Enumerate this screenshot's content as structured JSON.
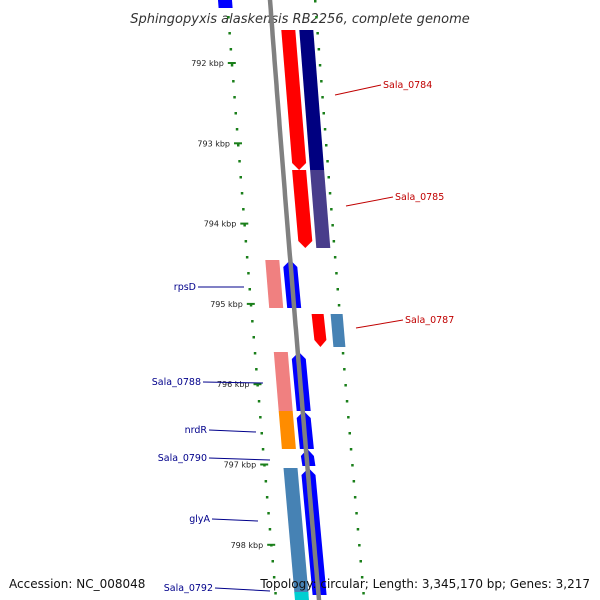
{
  "title": "Sphingopyxis alaskensis RB2256, complete genome",
  "footer": {
    "accession": "Accession: NC_008048",
    "topology": "Topology: circular; Length: 3,345,170 bp; Genes: 3,217"
  },
  "colors": {
    "backbone": "#808080",
    "tick": "#1a7f1a",
    "label_forward": "#c00000",
    "label_reverse": "#00008b",
    "forward_cds": "#ff0000",
    "forward_gene": "#000080",
    "reverse_cds": "#0000ff",
    "reverse_gene": "#4682b4"
  },
  "ticks": [
    "792 kbp",
    "793 kbp",
    "794 kbp",
    "795 kbp",
    "796 kbp",
    "797 kbp",
    "798 kbp"
  ],
  "gene_labels": [
    {
      "name": "Sala_0784",
      "strand": "forward"
    },
    {
      "name": "Sala_0785",
      "strand": "forward"
    },
    {
      "name": "Sala_0787",
      "strand": "forward"
    },
    {
      "name": "rpsD",
      "strand": "reverse"
    },
    {
      "name": "Sala_0788",
      "strand": "reverse"
    },
    {
      "name": "nrdR",
      "strand": "reverse"
    },
    {
      "name": "Sala_0790",
      "strand": "reverse"
    },
    {
      "name": "glyA",
      "strand": "reverse"
    },
    {
      "name": "Sala_0792",
      "strand": "reverse"
    }
  ]
}
